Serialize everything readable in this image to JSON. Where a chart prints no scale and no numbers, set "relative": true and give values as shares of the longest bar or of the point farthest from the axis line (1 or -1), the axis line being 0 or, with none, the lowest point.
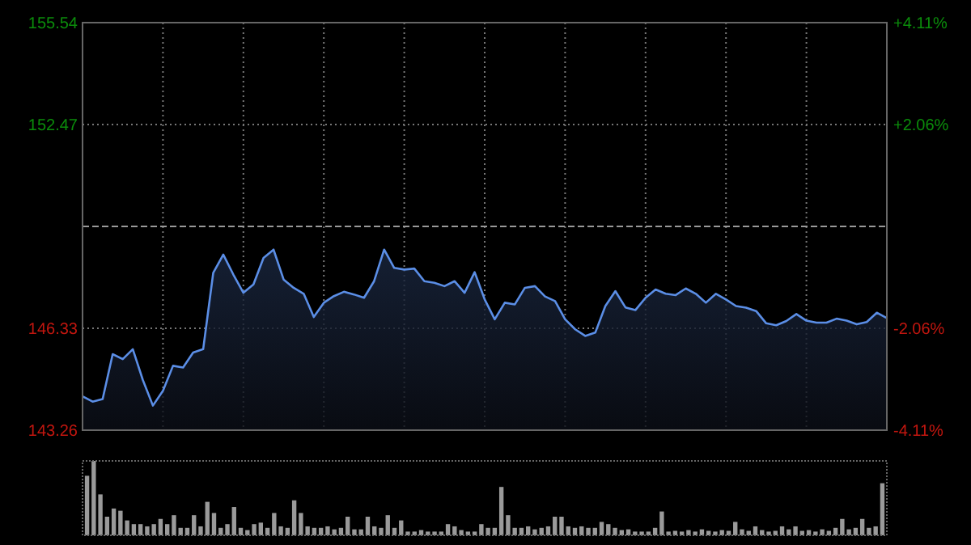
{
  "chart_data": [
    {
      "type": "area",
      "categories": [
        null,
        null,
        null,
        null,
        null,
        null,
        null,
        null,
        null,
        null,
        null,
        null,
        null,
        null,
        null,
        null,
        null,
        null,
        null,
        null,
        null,
        null,
        null,
        null,
        null,
        null,
        null,
        null,
        null,
        null,
        null,
        null,
        null,
        null,
        null,
        null,
        null,
        null,
        null,
        null,
        null,
        null,
        null,
        null,
        null,
        null,
        null,
        null,
        null,
        null,
        null,
        null,
        null,
        null,
        null,
        null,
        null,
        null,
        null,
        null,
        null,
        null,
        null,
        null,
        null,
        null,
        null,
        null,
        null,
        null,
        null,
        null,
        null,
        null,
        null,
        null,
        null,
        null,
        null,
        null,
        null
      ],
      "ylim": [
        143.26,
        155.54
      ],
      "yticks": [
        143.26,
        146.33,
        152.47,
        155.54
      ],
      "y2lim": [
        -4.11,
        4.11
      ],
      "y2ticks": [
        {
          "value": -4.11,
          "label": "-4.11%"
        },
        {
          "value": -2.06,
          "label": "-2.06%"
        },
        {
          "value": 2.06,
          "label": "+2.06%"
        },
        {
          "value": 4.11,
          "label": "+4.11%"
        }
      ],
      "ref_lines": [
        {
          "axis": "y",
          "value": 149.4,
          "line_style": "dashed"
        }
      ],
      "grid": true,
      "series": [
        {
          "color": "#5b8ee6",
          "values": [
            144.28,
            144.12,
            144.2,
            145.55,
            145.4,
            145.7,
            144.77,
            144.0,
            144.45,
            145.2,
            145.15,
            145.6,
            145.7,
            148.0,
            148.55,
            147.95,
            147.4,
            147.65,
            148.45,
            148.7,
            147.8,
            147.55,
            147.37,
            146.67,
            147.1,
            147.3,
            147.43,
            147.35,
            147.25,
            147.75,
            148.7,
            148.15,
            148.1,
            148.13,
            147.75,
            147.7,
            147.6,
            147.75,
            147.4,
            148.02,
            147.2,
            146.6,
            147.1,
            147.05,
            147.55,
            147.6,
            147.29,
            147.15,
            146.6,
            146.3,
            146.1,
            146.2,
            147.0,
            147.45,
            146.96,
            146.88,
            147.25,
            147.5,
            147.37,
            147.33,
            147.53,
            147.37,
            147.1,
            147.37,
            147.2,
            147.0,
            146.95,
            146.85,
            146.48,
            146.42,
            146.55,
            146.76,
            146.56,
            146.5,
            146.5,
            146.62,
            146.56,
            146.45,
            146.52,
            146.8,
            146.64
          ]
        }
      ]
    },
    {
      "type": "bar",
      "relative": true,
      "color": "#9a9a9a",
      "categories": [
        null,
        null,
        null,
        null,
        null,
        null,
        null,
        null,
        null,
        null,
        null,
        null,
        null,
        null,
        null,
        null,
        null,
        null,
        null,
        null,
        null,
        null,
        null,
        null,
        null,
        null,
        null,
        null,
        null,
        null,
        null,
        null,
        null,
        null,
        null,
        null,
        null,
        null,
        null,
        null,
        null,
        null,
        null,
        null,
        null,
        null,
        null,
        null,
        null,
        null,
        null,
        null,
        null,
        null,
        null,
        null,
        null,
        null,
        null,
        null,
        null,
        null,
        null,
        null,
        null,
        null,
        null,
        null,
        null,
        null,
        null,
        null,
        null,
        null,
        null,
        null,
        null,
        null,
        null,
        null,
        null,
        null,
        null,
        null,
        null,
        null,
        null,
        null,
        null,
        null,
        null,
        null,
        null,
        null,
        null,
        null,
        null,
        null,
        null,
        null,
        null,
        null,
        null,
        null,
        null,
        null,
        null,
        null,
        null,
        null,
        null,
        null,
        null,
        null,
        null,
        null,
        null,
        null,
        null,
        null
      ],
      "values": [
        0.8,
        1.0,
        0.55,
        0.25,
        0.36,
        0.33,
        0.2,
        0.15,
        0.15,
        0.12,
        0.15,
        0.22,
        0.15,
        0.27,
        0.1,
        0.1,
        0.27,
        0.12,
        0.45,
        0.3,
        0.1,
        0.15,
        0.38,
        0.1,
        0.07,
        0.15,
        0.17,
        0.1,
        0.3,
        0.12,
        0.1,
        0.47,
        0.3,
        0.12,
        0.1,
        0.1,
        0.12,
        0.08,
        0.1,
        0.25,
        0.08,
        0.08,
        0.25,
        0.12,
        0.1,
        0.27,
        0.1,
        0.2,
        0.05,
        0.05,
        0.07,
        0.05,
        0.05,
        0.05,
        0.15,
        0.12,
        0.07,
        0.05,
        0.05,
        0.15,
        0.1,
        0.1,
        0.65,
        0.27,
        0.1,
        0.1,
        0.12,
        0.08,
        0.1,
        0.12,
        0.25,
        0.25,
        0.12,
        0.1,
        0.12,
        0.1,
        0.1,
        0.18,
        0.15,
        0.1,
        0.07,
        0.08,
        0.05,
        0.05,
        0.05,
        0.1,
        0.32,
        0.05,
        0.06,
        0.05,
        0.07,
        0.05,
        0.08,
        0.06,
        0.05,
        0.07,
        0.06,
        0.18,
        0.08,
        0.06,
        0.12,
        0.07,
        0.05,
        0.06,
        0.12,
        0.08,
        0.12,
        0.06,
        0.07,
        0.05,
        0.08,
        0.06,
        0.1,
        0.22,
        0.08,
        0.1,
        0.22,
        0.1,
        0.12,
        0.7
      ]
    }
  ]
}
